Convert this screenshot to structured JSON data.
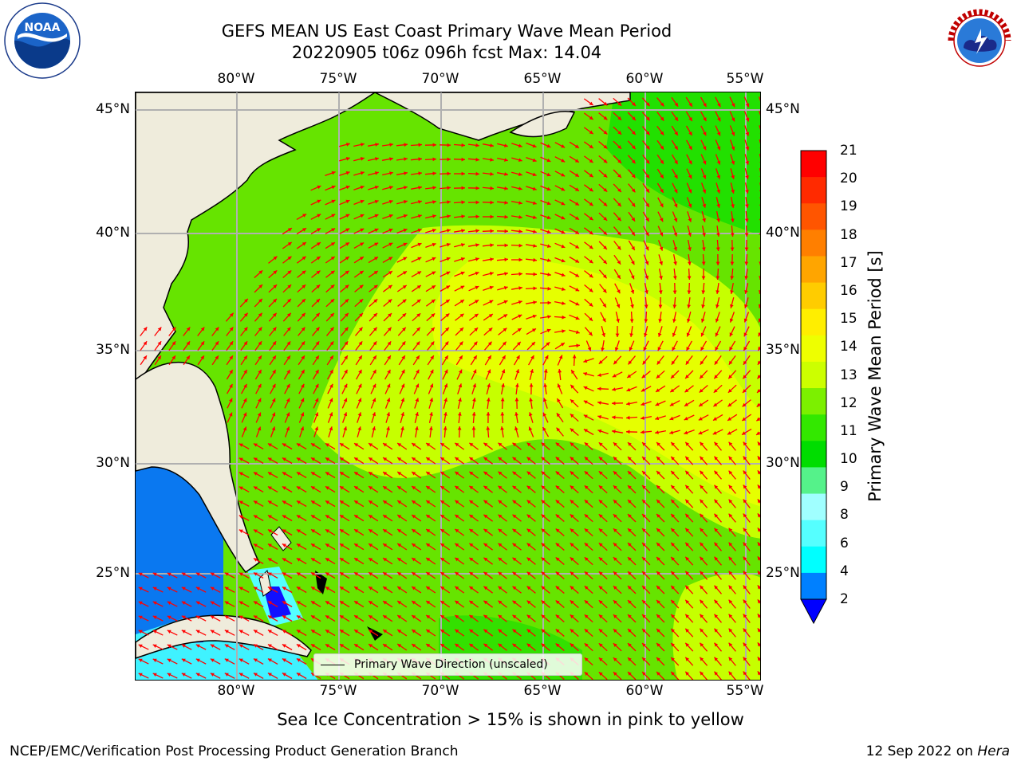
{
  "title": {
    "line1": "GEFS MEAN US East Coast Primary Wave Mean Period",
    "line2": "20220905 t06z 096h fcst   Max: 14.04"
  },
  "axes": {
    "lon_labels": [
      "80°W",
      "75°W",
      "70°W",
      "65°W",
      "60°W",
      "55°W"
    ],
    "lat_labels": [
      "45°N",
      "40°N",
      "35°N",
      "30°N",
      "25°N"
    ]
  },
  "legend": {
    "label": "Primary Wave Direction (unscaled)"
  },
  "colorbar": {
    "label": "Primary Wave Mean Period [s]",
    "ticks": [
      "21",
      "20",
      "19",
      "18",
      "17",
      "16",
      "15",
      "14",
      "13",
      "12",
      "11",
      "10",
      "9",
      "8",
      "6",
      "4",
      "2"
    ],
    "colors": [
      "#ff0000",
      "#ff2a00",
      "#ff5500",
      "#ff7f00",
      "#ffa500",
      "#ffcc00",
      "#ffee00",
      "#eeff00",
      "#ccff00",
      "#7cf000",
      "#33e800",
      "#00dd00",
      "#55f28a",
      "#a0ffff",
      "#55ffff",
      "#00ffff",
      "#0080ff"
    ],
    "under_color": "#0000ff"
  },
  "map": {
    "land_color": "#efecdc",
    "arrow_color": "#ff0000",
    "grid_color": "#b0b0b0"
  },
  "footnote": "Sea Ice Concentration > 15% is shown in pink to yellow",
  "credit_left": "NCEP/EMC/Verification Post Processing Product Generation Branch",
  "credit_right": {
    "date": "12 Sep 2022 on",
    "machine": "Hera"
  },
  "logos": {
    "left_text": "NOAA",
    "right_text": "NATIONAL WEATHER SERVICE"
  }
}
